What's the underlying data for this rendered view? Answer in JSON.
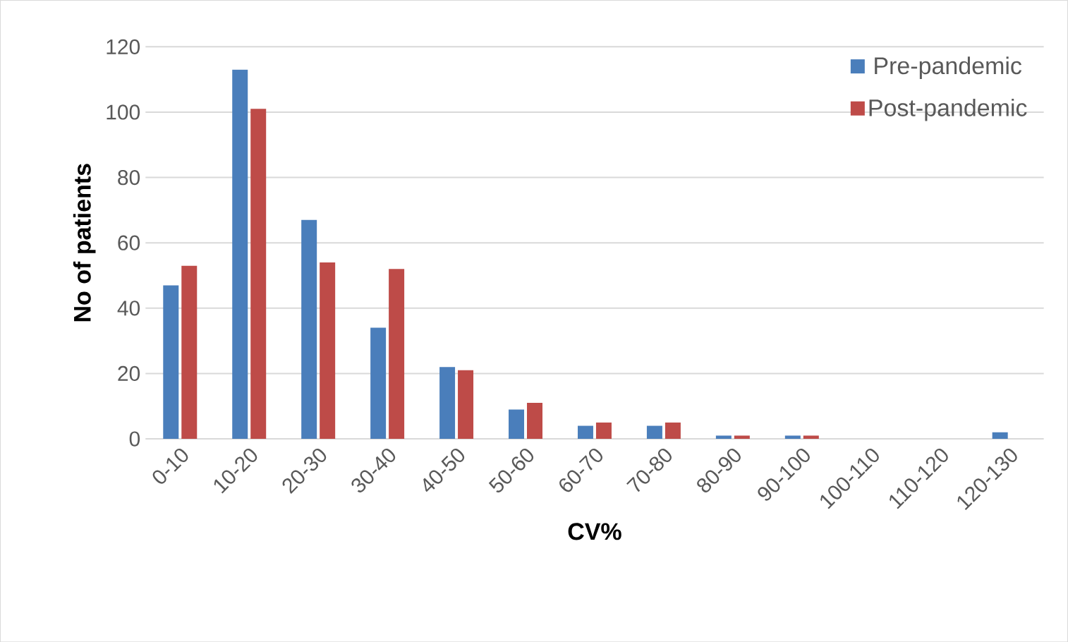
{
  "chart_data": {
    "type": "bar",
    "xlabel": "CV%",
    "ylabel": "No of patients",
    "categories": [
      "0-10",
      "10-20",
      "20-30",
      "30-40",
      "40-50",
      "50-60",
      "60-70",
      "70-80",
      "80-90",
      "90-100",
      "100-110",
      "110-120",
      "120-130"
    ],
    "series": [
      {
        "name": "Pre-pandemic",
        "color": "#4a7ebb",
        "values": [
          47,
          113,
          67,
          34,
          22,
          9,
          4,
          4,
          1,
          1,
          0,
          0,
          2
        ]
      },
      {
        "name": "Post-pandemic",
        "color": "#be4b48",
        "values": [
          53,
          101,
          54,
          52,
          21,
          11,
          5,
          5,
          1,
          1,
          0,
          0,
          0
        ]
      }
    ],
    "ylim": [
      0,
      120
    ],
    "yticks": [
      0,
      20,
      40,
      60,
      80,
      100,
      120
    ],
    "grid": "y",
    "legend": "top right"
  }
}
